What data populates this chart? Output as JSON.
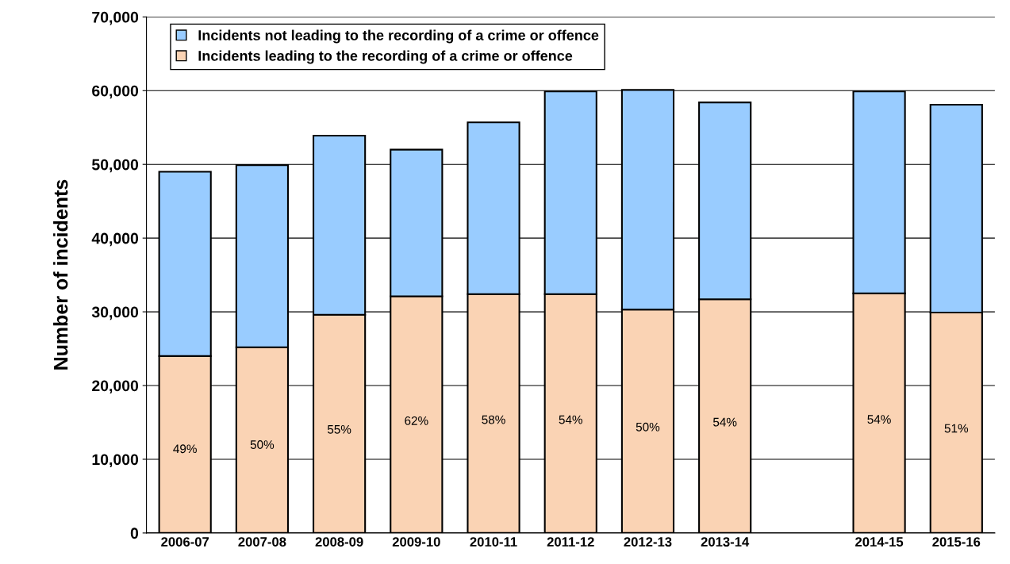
{
  "chart_data": {
    "type": "bar",
    "stacked": true,
    "ylabel": "Number of incidents",
    "categories": [
      "2006-07",
      "2007-08",
      "2008-09",
      "2009-10",
      "2010-11",
      "2011-12",
      "2012-13",
      "2013-14",
      null,
      "2014-15",
      "2015-16"
    ],
    "series": [
      {
        "name": "Incidents leading to the recording of a crime or offence",
        "color": "#fad3b4",
        "values": [
          24000,
          25200,
          29600,
          32100,
          32400,
          32400,
          30300,
          31700,
          null,
          32500,
          29900
        ]
      },
      {
        "name": "Incidents not leading to the recording of a crime or offence",
        "color": "#99ccff",
        "values": [
          25000,
          24700,
          24300,
          19900,
          23300,
          27500,
          29800,
          26700,
          null,
          27400,
          28200
        ]
      }
    ],
    "ylim": [
      0,
      70000
    ],
    "yticks": [
      {
        "value": 0,
        "label": "0"
      },
      {
        "value": 10000,
        "label": "10,000"
      },
      {
        "value": 20000,
        "label": "20,000"
      },
      {
        "value": 30000,
        "label": "30,000"
      },
      {
        "value": 40000,
        "label": "40,000"
      },
      {
        "value": 50000,
        "label": "50,000"
      },
      {
        "value": 60000,
        "label": "60,000"
      },
      {
        "value": 70000,
        "label": "70,000"
      }
    ],
    "annotations": [
      "49%",
      "50%",
      "55%",
      "62%",
      "58%",
      "54%",
      "50%",
      "54%",
      "54%",
      "51%"
    ],
    "grid": "y",
    "legend": "top left"
  }
}
